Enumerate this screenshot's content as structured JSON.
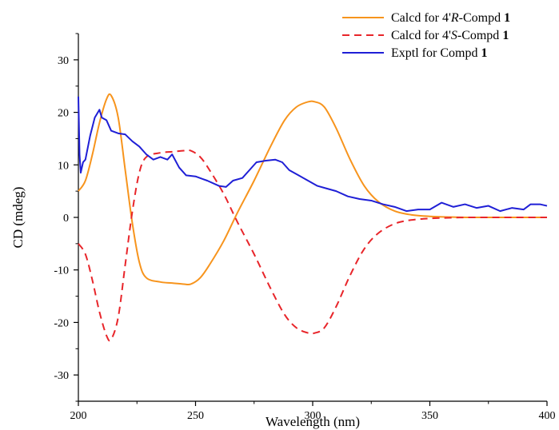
{
  "chart_data": {
    "type": "line",
    "xlabel": "Wavelength (nm)",
    "ylabel": "CD (mdeg)",
    "xlim": [
      200,
      400
    ],
    "ylim": [
      -35,
      35
    ],
    "xticks": [
      200,
      250,
      300,
      350,
      400
    ],
    "yticks": [
      -30,
      -20,
      -10,
      0,
      10,
      20,
      30
    ],
    "grid": false,
    "legend_position": "top-right",
    "series": [
      {
        "name": "Calcd for 4'R-Compd 1",
        "legend_parts": [
          {
            "text": "Calcd for 4'",
            "style": "normal"
          },
          {
            "text": "R",
            "style": "italic"
          },
          {
            "text": "-Compd ",
            "style": "normal"
          },
          {
            "text": "1",
            "style": "bold"
          }
        ],
        "color": "#f7941d",
        "dash": "solid",
        "points": [
          [
            200,
            5.0
          ],
          [
            203,
            7.0
          ],
          [
            206,
            12.0
          ],
          [
            209,
            18.0
          ],
          [
            212,
            22.5
          ],
          [
            214,
            23.2
          ],
          [
            217,
            19.0
          ],
          [
            220,
            9.0
          ],
          [
            223,
            -1.0
          ],
          [
            226,
            -8.5
          ],
          [
            229,
            -11.5
          ],
          [
            235,
            -12.3
          ],
          [
            240,
            -12.5
          ],
          [
            245,
            -12.7
          ],
          [
            248,
            -12.7
          ],
          [
            252,
            -11.5
          ],
          [
            256,
            -9.0
          ],
          [
            262,
            -4.5
          ],
          [
            268,
            1.0
          ],
          [
            275,
            7.0
          ],
          [
            282,
            13.5
          ],
          [
            288,
            18.5
          ],
          [
            293,
            21.0
          ],
          [
            298,
            22.0
          ],
          [
            301,
            22.0
          ],
          [
            305,
            21.0
          ],
          [
            310,
            17.0
          ],
          [
            316,
            11.0
          ],
          [
            322,
            6.0
          ],
          [
            328,
            3.0
          ],
          [
            335,
            1.2
          ],
          [
            342,
            0.5
          ],
          [
            350,
            0.2
          ],
          [
            360,
            0.05
          ],
          [
            370,
            0.0
          ],
          [
            400,
            0.0
          ]
        ]
      },
      {
        "name": "Calcd for 4'S-Compd 1",
        "legend_parts": [
          {
            "text": "Calcd for 4'",
            "style": "normal"
          },
          {
            "text": "S",
            "style": "italic"
          },
          {
            "text": "-Compd ",
            "style": "normal"
          },
          {
            "text": "1",
            "style": "bold"
          }
        ],
        "color": "#e8252a",
        "dash": "dashed",
        "points": [
          [
            200,
            -5.0
          ],
          [
            203,
            -7.0
          ],
          [
            206,
            -12.0
          ],
          [
            209,
            -18.0
          ],
          [
            212,
            -22.5
          ],
          [
            214,
            -23.2
          ],
          [
            217,
            -19.0
          ],
          [
            220,
            -9.0
          ],
          [
            223,
            1.0
          ],
          [
            226,
            8.5
          ],
          [
            229,
            11.5
          ],
          [
            235,
            12.3
          ],
          [
            240,
            12.5
          ],
          [
            245,
            12.7
          ],
          [
            248,
            12.7
          ],
          [
            252,
            11.5
          ],
          [
            256,
            9.0
          ],
          [
            262,
            4.5
          ],
          [
            268,
            -1.0
          ],
          [
            275,
            -7.0
          ],
          [
            282,
            -13.5
          ],
          [
            288,
            -18.5
          ],
          [
            293,
            -21.0
          ],
          [
            298,
            -22.0
          ],
          [
            301,
            -22.0
          ],
          [
            305,
            -21.0
          ],
          [
            310,
            -17.0
          ],
          [
            316,
            -11.0
          ],
          [
            322,
            -6.0
          ],
          [
            328,
            -3.0
          ],
          [
            335,
            -1.2
          ],
          [
            342,
            -0.5
          ],
          [
            350,
            -0.2
          ],
          [
            360,
            -0.05
          ],
          [
            370,
            0.0
          ],
          [
            400,
            0.0
          ]
        ]
      },
      {
        "name": "Exptl for Compd 1",
        "legend_parts": [
          {
            "text": "Exptl for Compd ",
            "style": "normal"
          },
          {
            "text": "1",
            "style": "bold"
          }
        ],
        "color": "#1f1fd6",
        "dash": "solid",
        "points": [
          [
            200,
            23.0
          ],
          [
            200.5,
            12.0
          ],
          [
            201,
            8.5
          ],
          [
            202,
            10.5
          ],
          [
            203,
            11.0
          ],
          [
            205,
            15.5
          ],
          [
            207,
            19.0
          ],
          [
            209,
            20.5
          ],
          [
            210,
            19.0
          ],
          [
            212,
            18.5
          ],
          [
            214,
            16.5
          ],
          [
            217,
            16.0
          ],
          [
            220,
            15.8
          ],
          [
            223,
            14.5
          ],
          [
            226,
            13.5
          ],
          [
            229,
            12.0
          ],
          [
            232,
            11.0
          ],
          [
            235,
            11.5
          ],
          [
            238,
            11.0
          ],
          [
            240,
            12.0
          ],
          [
            243,
            9.5
          ],
          [
            246,
            8.0
          ],
          [
            250,
            7.8
          ],
          [
            255,
            7.0
          ],
          [
            260,
            6.0
          ],
          [
            263,
            5.8
          ],
          [
            266,
            7.0
          ],
          [
            270,
            7.5
          ],
          [
            273,
            9.0
          ],
          [
            276,
            10.5
          ],
          [
            280,
            10.8
          ],
          [
            284,
            11.0
          ],
          [
            287,
            10.5
          ],
          [
            290,
            9.0
          ],
          [
            294,
            8.0
          ],
          [
            298,
            7.0
          ],
          [
            302,
            6.0
          ],
          [
            306,
            5.5
          ],
          [
            310,
            5.0
          ],
          [
            315,
            4.0
          ],
          [
            320,
            3.5
          ],
          [
            325,
            3.2
          ],
          [
            330,
            2.5
          ],
          [
            335,
            2.0
          ],
          [
            340,
            1.2
          ],
          [
            345,
            1.5
          ],
          [
            350,
            1.5
          ],
          [
            355,
            2.8
          ],
          [
            360,
            2.0
          ],
          [
            365,
            2.5
          ],
          [
            370,
            1.8
          ],
          [
            375,
            2.2
          ],
          [
            380,
            1.2
          ],
          [
            385,
            1.8
          ],
          [
            390,
            1.5
          ],
          [
            393,
            2.5
          ],
          [
            397,
            2.5
          ],
          [
            400,
            2.2
          ]
        ]
      }
    ]
  }
}
